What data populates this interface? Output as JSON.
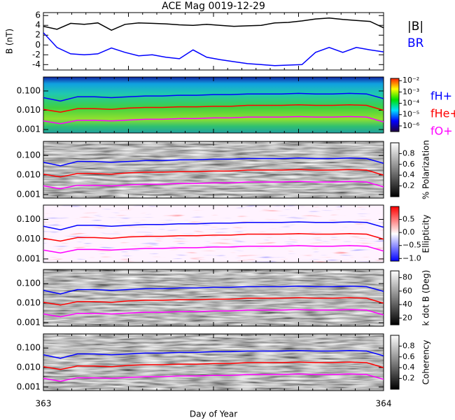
{
  "chart_data": [
    {
      "type": "line",
      "title": "ACE Mag 0019-12-29",
      "ylabel": "B (nT)",
      "xlim": [
        363,
        364
      ],
      "ylim": [
        -5.1,
        6.6
      ],
      "yticks": [
        -4,
        -2,
        0,
        2,
        4,
        6
      ],
      "x": [
        363.0,
        363.04,
        363.08,
        363.12,
        363.16,
        363.2,
        363.24,
        363.28,
        363.32,
        363.36,
        363.4,
        363.44,
        363.48,
        363.52,
        363.56,
        363.6,
        363.64,
        363.68,
        363.72,
        363.76,
        363.8,
        363.84,
        363.88,
        363.92,
        363.96,
        364.0
      ],
      "series": [
        {
          "name": "|B|",
          "color": "#000000",
          "values": [
            3.8,
            3.2,
            4.4,
            4.2,
            4.5,
            3.0,
            4.2,
            4.5,
            4.4,
            4.3,
            4.1,
            4.0,
            4.2,
            4.0,
            3.8,
            3.9,
            4.0,
            4.5,
            4.6,
            4.9,
            5.3,
            5.5,
            5.2,
            5.0,
            4.8,
            3.5
          ]
        },
        {
          "name": "BR",
          "color": "#0000ff",
          "values": [
            2.5,
            -0.5,
            -1.8,
            -2.0,
            -1.8,
            -0.6,
            -1.5,
            -2.2,
            -2.0,
            -2.5,
            -2.8,
            -1.0,
            -2.5,
            -3.0,
            -3.4,
            -3.8,
            -4.0,
            -4.2,
            -4.1,
            -4.0,
            -1.5,
            -0.5,
            -1.5,
            -0.5,
            -1.0,
            -1.4
          ]
        }
      ]
    },
    {
      "type": "spectrogram",
      "log_y": true,
      "xlim": [
        363,
        364
      ],
      "ylim": [
        0.00066,
        0.53
      ],
      "yticks": [
        0.001,
        {
          "value": 0.01,
          "label": "0.010"
        },
        {
          "value": 0.1,
          "label": "0.100"
        }
      ],
      "colormap": "rainbow",
      "clim": [
        -6.5,
        -1.8
      ],
      "cticks": [
        {
          "value": -2,
          "label": "10⁻²"
        },
        {
          "value": -3,
          "label": "10⁻³"
        },
        {
          "value": -4,
          "label": "10⁻⁴"
        },
        {
          "value": -5,
          "label": "10⁻⁵"
        },
        {
          "value": -6,
          "label": "10⁻⁶"
        }
      ],
      "legend": true,
      "x": [
        363.0,
        363.05,
        363.1,
        363.15,
        363.2,
        363.25,
        363.3,
        363.35,
        363.4,
        363.45,
        363.5,
        363.55,
        363.6,
        363.65,
        363.7,
        363.75,
        363.8,
        363.85,
        363.9,
        363.95,
        364.0
      ],
      "series": [
        {
          "name": "fH+",
          "color": "#0000ff",
          "values": [
            0.045,
            0.03,
            0.05,
            0.05,
            0.045,
            0.05,
            0.055,
            0.055,
            0.06,
            0.06,
            0.065,
            0.065,
            0.07,
            0.07,
            0.07,
            0.075,
            0.07,
            0.07,
            0.075,
            0.07,
            0.04
          ]
        },
        {
          "name": "fHe+",
          "color": "#ff0000",
          "values": [
            0.011,
            0.008,
            0.012,
            0.012,
            0.011,
            0.013,
            0.014,
            0.014,
            0.015,
            0.015,
            0.016,
            0.016,
            0.018,
            0.018,
            0.018,
            0.019,
            0.018,
            0.018,
            0.019,
            0.018,
            0.01
          ]
        },
        {
          "name": "fO+",
          "color": "#ff00ff",
          "values": [
            0.0028,
            0.002,
            0.003,
            0.003,
            0.0028,
            0.0031,
            0.0034,
            0.0034,
            0.0037,
            0.0037,
            0.004,
            0.004,
            0.0044,
            0.0044,
            0.0044,
            0.0047,
            0.0044,
            0.0044,
            0.0047,
            0.0044,
            0.0025
          ]
        }
      ]
    },
    {
      "type": "spectrogram",
      "log_y": true,
      "xlim": [
        363,
        364
      ],
      "ylim": [
        0.00066,
        0.53
      ],
      "yticks": [
        0.001,
        {
          "value": 0.01,
          "label": "0.010"
        },
        {
          "value": 0.1,
          "label": "0.100"
        }
      ],
      "colormap": "gray",
      "clim": [
        0,
        1
      ],
      "clabel": "% Polarization",
      "cticks": [
        0.2,
        0.4,
        0.6,
        0.8
      ],
      "x": [
        363.0,
        363.05,
        363.1,
        363.15,
        363.2,
        363.25,
        363.3,
        363.35,
        363.4,
        363.45,
        363.5,
        363.55,
        363.6,
        363.65,
        363.7,
        363.75,
        363.8,
        363.85,
        363.9,
        363.95,
        364.0
      ],
      "series": [
        {
          "color": "#0000ff",
          "values": [
            0.045,
            0.03,
            0.05,
            0.05,
            0.045,
            0.05,
            0.055,
            0.055,
            0.06,
            0.06,
            0.065,
            0.065,
            0.07,
            0.07,
            0.07,
            0.075,
            0.07,
            0.07,
            0.075,
            0.07,
            0.04
          ]
        },
        {
          "color": "#ff0000",
          "values": [
            0.011,
            0.008,
            0.012,
            0.012,
            0.011,
            0.013,
            0.014,
            0.014,
            0.015,
            0.015,
            0.016,
            0.016,
            0.018,
            0.018,
            0.018,
            0.019,
            0.018,
            0.018,
            0.019,
            0.018,
            0.01
          ]
        },
        {
          "color": "#ff00ff",
          "values": [
            0.0028,
            0.002,
            0.003,
            0.003,
            0.0028,
            0.0031,
            0.0034,
            0.0034,
            0.0037,
            0.0037,
            0.004,
            0.004,
            0.0044,
            0.0044,
            0.0044,
            0.0047,
            0.0044,
            0.0044,
            0.0047,
            0.0044,
            0.0025
          ]
        }
      ]
    },
    {
      "type": "spectrogram",
      "log_y": true,
      "xlim": [
        363,
        364
      ],
      "ylim": [
        0.00066,
        0.53
      ],
      "yticks": [
        0.001,
        {
          "value": 0.01,
          "label": "0.010"
        },
        {
          "value": 0.1,
          "label": "0.100"
        }
      ],
      "colormap": "bwr",
      "clim": [
        -1.1,
        1.0
      ],
      "clabel": "Ellipticity",
      "cticks": [
        {
          "value": -1,
          "label": "−1.0"
        },
        {
          "value": -0.5,
          "label": "−0.5"
        },
        {
          "value": 0,
          "label": "0.0"
        },
        0.5
      ],
      "x": [
        363.0,
        363.05,
        363.1,
        363.15,
        363.2,
        363.25,
        363.3,
        363.35,
        363.4,
        363.45,
        363.5,
        363.55,
        363.6,
        363.65,
        363.7,
        363.75,
        363.8,
        363.85,
        363.9,
        363.95,
        364.0
      ],
      "series": [
        {
          "color": "#0000ff",
          "values": [
            0.045,
            0.03,
            0.05,
            0.05,
            0.045,
            0.05,
            0.055,
            0.055,
            0.06,
            0.06,
            0.065,
            0.065,
            0.07,
            0.07,
            0.07,
            0.075,
            0.07,
            0.07,
            0.075,
            0.07,
            0.04
          ]
        },
        {
          "color": "#ff0000",
          "values": [
            0.011,
            0.008,
            0.012,
            0.012,
            0.011,
            0.013,
            0.014,
            0.014,
            0.015,
            0.015,
            0.016,
            0.016,
            0.018,
            0.018,
            0.018,
            0.019,
            0.018,
            0.018,
            0.019,
            0.018,
            0.01
          ]
        },
        {
          "color": "#ff00ff",
          "values": [
            0.0028,
            0.002,
            0.003,
            0.003,
            0.0028,
            0.0031,
            0.0034,
            0.0034,
            0.0037,
            0.0037,
            0.004,
            0.004,
            0.0044,
            0.0044,
            0.0044,
            0.0047,
            0.0044,
            0.0044,
            0.0047,
            0.0044,
            0.0025
          ]
        }
      ]
    },
    {
      "type": "spectrogram",
      "log_y": true,
      "xlim": [
        363,
        364
      ],
      "ylim": [
        0.00066,
        0.53
      ],
      "yticks": [
        0.001,
        {
          "value": 0.01,
          "label": "0.010"
        },
        {
          "value": 0.1,
          "label": "0.100"
        }
      ],
      "colormap": "gray",
      "clim": [
        10,
        90
      ],
      "clabel": "k dot B (Deg)",
      "cticks": [
        20,
        40,
        60,
        80
      ],
      "x": [
        363.0,
        363.05,
        363.1,
        363.15,
        363.2,
        363.25,
        363.3,
        363.35,
        363.4,
        363.45,
        363.5,
        363.55,
        363.6,
        363.65,
        363.7,
        363.75,
        363.8,
        363.85,
        363.9,
        363.95,
        364.0
      ],
      "series": [
        {
          "color": "#0000ff",
          "values": [
            0.045,
            0.03,
            0.05,
            0.05,
            0.045,
            0.05,
            0.055,
            0.055,
            0.06,
            0.06,
            0.065,
            0.065,
            0.07,
            0.07,
            0.07,
            0.075,
            0.07,
            0.07,
            0.075,
            0.07,
            0.04
          ]
        },
        {
          "color": "#ff0000",
          "values": [
            0.011,
            0.008,
            0.012,
            0.012,
            0.011,
            0.013,
            0.014,
            0.014,
            0.015,
            0.015,
            0.016,
            0.016,
            0.018,
            0.018,
            0.018,
            0.019,
            0.018,
            0.018,
            0.019,
            0.018,
            0.01
          ]
        },
        {
          "color": "#ff00ff",
          "values": [
            0.0028,
            0.002,
            0.003,
            0.003,
            0.0028,
            0.0031,
            0.0034,
            0.0034,
            0.0037,
            0.0037,
            0.004,
            0.004,
            0.0044,
            0.0044,
            0.0044,
            0.0047,
            0.0044,
            0.0044,
            0.0047,
            0.0044,
            0.0025
          ]
        }
      ]
    },
    {
      "type": "spectrogram",
      "log_y": true,
      "xlim": [
        363,
        364
      ],
      "ylim": [
        0.00066,
        0.53
      ],
      "yticks": [
        0.001,
        {
          "value": 0.01,
          "label": "0.010"
        },
        {
          "value": 0.1,
          "label": "0.100"
        }
      ],
      "colormap": "gray",
      "clim": [
        0,
        1
      ],
      "clabel": "Coherency",
      "cticks": [
        0.2,
        0.4,
        0.6,
        0.8
      ],
      "xticks": [
        363,
        364
      ],
      "xlabel": "Day of Year",
      "x": [
        363.0,
        363.05,
        363.1,
        363.15,
        363.2,
        363.25,
        363.3,
        363.35,
        363.4,
        363.45,
        363.5,
        363.55,
        363.6,
        363.65,
        363.7,
        363.75,
        363.8,
        363.85,
        363.9,
        363.95,
        364.0
      ],
      "series": [
        {
          "color": "#0000ff",
          "values": [
            0.045,
            0.03,
            0.05,
            0.05,
            0.045,
            0.05,
            0.055,
            0.055,
            0.06,
            0.06,
            0.065,
            0.065,
            0.07,
            0.07,
            0.07,
            0.075,
            0.07,
            0.07,
            0.075,
            0.07,
            0.04
          ]
        },
        {
          "color": "#ff0000",
          "values": [
            0.011,
            0.008,
            0.012,
            0.012,
            0.011,
            0.013,
            0.014,
            0.014,
            0.015,
            0.015,
            0.016,
            0.016,
            0.018,
            0.018,
            0.018,
            0.019,
            0.018,
            0.018,
            0.019,
            0.018,
            0.01
          ]
        },
        {
          "color": "#ff00ff",
          "values": [
            0.0028,
            0.002,
            0.003,
            0.003,
            0.0028,
            0.0031,
            0.0034,
            0.0034,
            0.0037,
            0.0037,
            0.004,
            0.004,
            0.0044,
            0.0044,
            0.0044,
            0.0047,
            0.0044,
            0.0044,
            0.0047,
            0.0044,
            0.0025
          ]
        }
      ]
    }
  ]
}
